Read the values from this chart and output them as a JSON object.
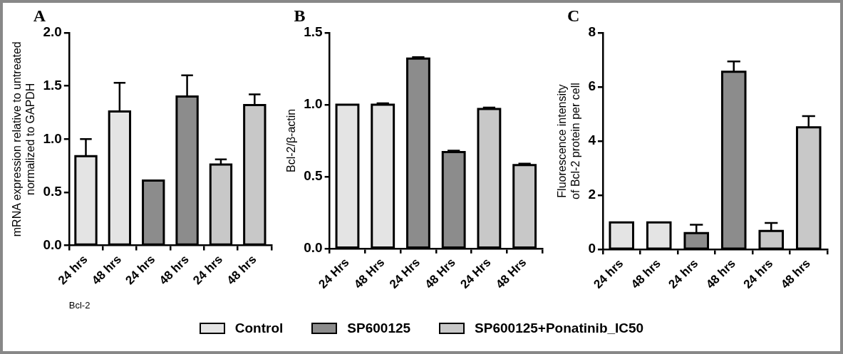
{
  "chart_data": [
    {
      "type": "bar",
      "title": "A",
      "ylabel": "mRNA expression relative to untreated\nnormalized to GAPDH",
      "xlabel": "Bcl-2",
      "categories": [
        "24 hrs",
        "48 hrs",
        "24 hrs",
        "48 hrs",
        "24 hrs",
        "48 hrs"
      ],
      "ylim": [
        0,
        2
      ],
      "yticks": [
        {
          "value": 0,
          "label": "0.0"
        },
        0.5,
        {
          "value": 1,
          "label": "1.0"
        },
        1.5,
        {
          "value": 2,
          "label": "2.0"
        }
      ],
      "legend": "bottom",
      "series": [
        {
          "name": "Control",
          "color": "#e4e4e4",
          "values": [
            0.84,
            1.26,
            null,
            null,
            null,
            null
          ],
          "errors": [
            [
              0.84,
              1.0
            ],
            [
              1.26,
              1.53
            ],
            null,
            null,
            null,
            null
          ]
        },
        {
          "name": "SP600125",
          "color": "#8c8c8c",
          "values": [
            null,
            null,
            0.61,
            1.4,
            null,
            null
          ],
          "errors": [
            null,
            null,
            null,
            [
              1.4,
              1.6
            ],
            null,
            null
          ]
        },
        {
          "name": "SP600125+Ponatinib_IC50",
          "color": "#c8c8c8",
          "values": [
            null,
            null,
            null,
            null,
            0.76,
            1.32
          ],
          "errors": [
            null,
            null,
            null,
            null,
            [
              0.76,
              0.81
            ],
            [
              1.32,
              1.42
            ]
          ]
        }
      ]
    },
    {
      "type": "bar",
      "title": "B",
      "ylabel": "Bcl-2/β-actin",
      "categories": [
        "24 Hrs",
        "48 Hrs",
        "24 Hrs",
        "48 Hrs",
        "24 Hrs",
        "48 Hrs"
      ],
      "ylim": [
        0,
        1.5
      ],
      "yticks": [
        {
          "value": 0,
          "label": "0.0"
        },
        0.5,
        {
          "value": 1,
          "label": "1.0"
        },
        1.5
      ],
      "series": [
        {
          "color": "#e4e4e4",
          "values": [
            1.0,
            1.0,
            null,
            null,
            null,
            null
          ],
          "errors": [
            null,
            [
              1.0,
              1.01
            ],
            null,
            null,
            null,
            null
          ]
        },
        {
          "color": "#8c8c8c",
          "values": [
            null,
            null,
            1.32,
            0.67,
            null,
            null
          ],
          "errors": [
            null,
            null,
            [
              1.32,
              1.33
            ],
            [
              0.67,
              0.68
            ],
            null,
            null
          ]
        },
        {
          "color": "#c8c8c8",
          "values": [
            null,
            null,
            null,
            null,
            0.97,
            0.58
          ],
          "errors": [
            null,
            null,
            null,
            null,
            [
              0.97,
              0.98
            ],
            [
              0.58,
              0.59
            ]
          ]
        }
      ]
    },
    {
      "type": "bar",
      "title": "C",
      "ylabel": "Fluorescence intensity\nof Bcl-2 protein per cell",
      "categories": [
        "24 hrs",
        "48 hrs",
        "24 hrs",
        "48 hrs",
        "24 hrs",
        "48 hrs"
      ],
      "ylim": [
        0,
        8
      ],
      "yticks": [
        0,
        2,
        4,
        6,
        8
      ],
      "series": [
        {
          "color": "#e4e4e4",
          "values": [
            1.0,
            1.0,
            null,
            null,
            null,
            null
          ]
        },
        {
          "color": "#8c8c8c",
          "values": [
            null,
            null,
            0.6,
            6.56,
            null,
            null
          ],
          "errors": [
            null,
            null,
            [
              0.6,
              0.91
            ],
            [
              6.56,
              6.94
            ],
            null,
            null
          ]
        },
        {
          "color": "#c8c8c8",
          "values": [
            null,
            null,
            null,
            null,
            0.68,
            4.51
          ],
          "errors": [
            null,
            null,
            null,
            null,
            [
              0.68,
              0.98
            ],
            [
              4.51,
              4.92
            ]
          ]
        }
      ]
    }
  ]
}
